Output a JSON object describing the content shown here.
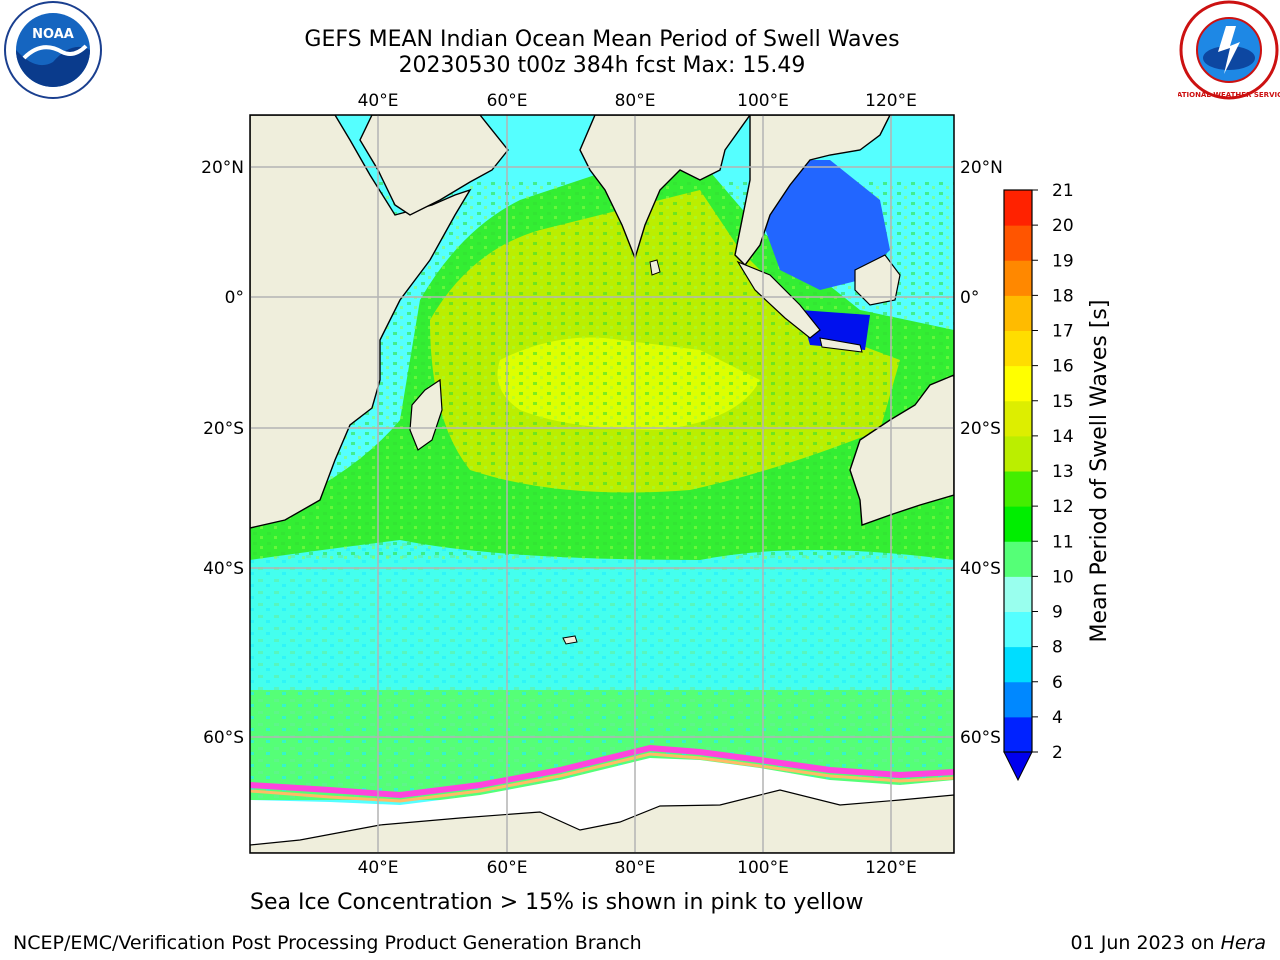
{
  "header": {
    "title_line1": "GEFS MEAN Indian Ocean Mean Period of Swell Waves",
    "title_line2": "20230530 t00z 384h fcst   Max: 15.49"
  },
  "logos": {
    "left": {
      "name": "noaa-logo",
      "text": "NOAA"
    },
    "right": {
      "name": "nws-logo",
      "text": "NATIONAL WEATHER SERVICE"
    }
  },
  "map": {
    "lon_ticks": [
      "40°E",
      "60°E",
      "80°E",
      "100°E",
      "120°E"
    ],
    "lat_ticks": [
      "20°N",
      "0°",
      "20°S",
      "40°S",
      "60°S"
    ],
    "colors": {
      "land": "#efeedc",
      "grid": "#b4b4b4",
      "ice": "#ffffff",
      "coast": "#000000"
    }
  },
  "colorbar": {
    "label": "Mean Period of Swell Waves [s]",
    "ticks": [
      "2",
      "4",
      "6",
      "8",
      "9",
      "10",
      "11",
      "12",
      "13",
      "14",
      "15",
      "16",
      "17",
      "18",
      "19",
      "20",
      "21"
    ],
    "colors": [
      "#0022ff",
      "#0088ff",
      "#00ddff",
      "#55ffff",
      "#99ffee",
      "#55ff77",
      "#00ee00",
      "#44ee00",
      "#bbee00",
      "#ddee00",
      "#ffff00",
      "#ffdd00",
      "#ffbb00",
      "#ff8800",
      "#ff5500",
      "#ff2200"
    ],
    "under_color": "#0000ee"
  },
  "caption": "Sea Ice Concentration > 15% is shown in pink to yellow",
  "footer": {
    "left": "NCEP/EMC/Verification Post Processing Product Generation Branch",
    "right_prefix": "01 Jun 2023 on ",
    "right_host": "Hera"
  }
}
